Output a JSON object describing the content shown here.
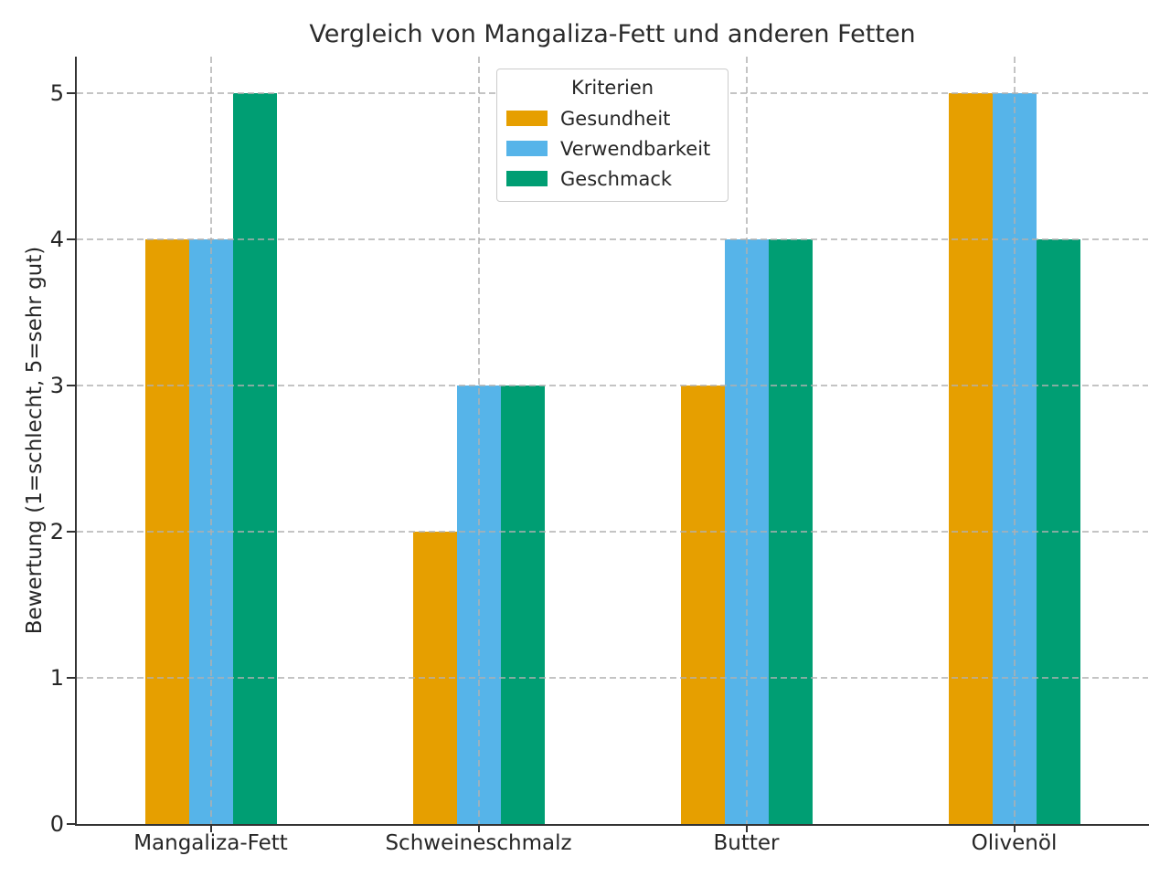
{
  "chart_data": {
    "type": "bar",
    "title": "Vergleich von Mangaliza-Fett und anderen Fetten",
    "ylabel": "Bewertung (1=schlecht, 5=sehr gut)",
    "xlabel": "",
    "categories": [
      "Mangaliza-Fett",
      "Schweineschmalz",
      "Butter",
      "Olivenöl"
    ],
    "series": [
      {
        "name": "Gesundheit",
        "color": "#E69F00",
        "values": [
          4,
          2,
          3,
          5
        ]
      },
      {
        "name": "Verwendbarkeit",
        "color": "#56B4E9",
        "values": [
          4,
          3,
          4,
          5
        ]
      },
      {
        "name": "Geschmack",
        "color": "#009E73",
        "values": [
          5,
          3,
          4,
          4
        ]
      }
    ],
    "legend": {
      "title": "Kriterien",
      "position": "upper center"
    },
    "ylim": [
      0,
      5.25
    ],
    "yticks": [
      "0",
      "1",
      "2",
      "3",
      "4",
      "5"
    ],
    "grid": true,
    "grid_style": "dashed",
    "axis_color": "#333333",
    "background": "#FFFFFF"
  }
}
